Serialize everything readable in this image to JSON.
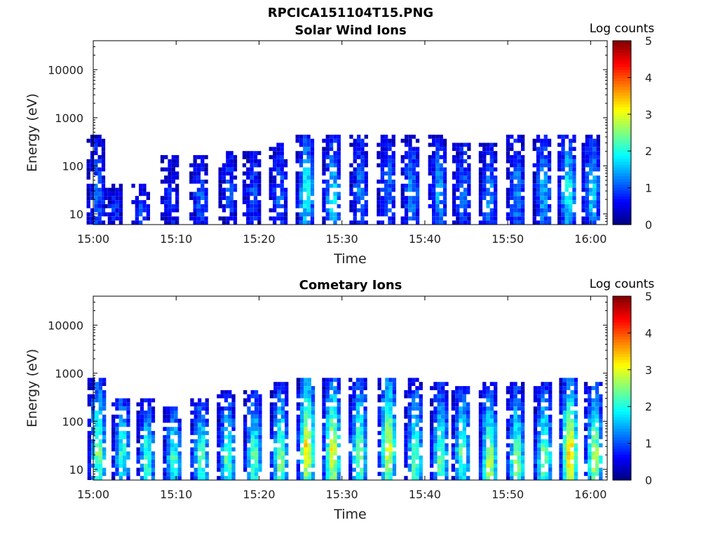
{
  "figure_title": "RPCICA151104T15.PNG",
  "chart_data": [
    {
      "type": "heatmap",
      "title": "Solar Wind Ions",
      "xlabel": "Time",
      "ylabel": "Energy (eV)",
      "y_scale": "log",
      "x_ticks": [
        "15:00",
        "15:10",
        "15:20",
        "15:30",
        "15:40",
        "15:50",
        "16:00"
      ],
      "x_range_minutes": [
        0,
        62
      ],
      "y_ticks": [
        10,
        100,
        1000,
        10000
      ],
      "y_tick_labels": [
        "10",
        "100",
        "1000",
        "10000"
      ],
      "y_range": [
        6,
        40000
      ],
      "colorbar": {
        "label": "Log counts",
        "min": 0,
        "max": 5,
        "ticks": [
          "0",
          "1",
          "2",
          "3",
          "4",
          "5"
        ],
        "colormap": "jet"
      },
      "bursts": [
        {
          "t": 0.3,
          "lo": 6,
          "hi": 400,
          "peak": 1.3,
          "peak_e": 25
        },
        {
          "t": 2.4,
          "lo": 6,
          "hi": 35,
          "peak": 1.0,
          "peak_e": 12
        },
        {
          "t": 5.7,
          "lo": 6,
          "hi": 40,
          "peak": 1.2,
          "peak_e": 12
        },
        {
          "t": 9.2,
          "lo": 6,
          "hi": 150,
          "peak": 1.0,
          "peak_e": 15
        },
        {
          "t": 12.7,
          "lo": 6,
          "hi": 150,
          "peak": 1.2,
          "peak_e": 20
        },
        {
          "t": 16.2,
          "lo": 6,
          "hi": 200,
          "peak": 1.2,
          "peak_e": 25
        },
        {
          "t": 19.1,
          "lo": 6,
          "hi": 200,
          "peak": 1.2,
          "peak_e": 25
        },
        {
          "t": 22.3,
          "lo": 6,
          "hi": 300,
          "peak": 1.3,
          "peak_e": 25
        },
        {
          "t": 25.5,
          "lo": 6,
          "hi": 400,
          "peak": 2.3,
          "peak_e": 25
        },
        {
          "t": 28.7,
          "lo": 6,
          "hi": 400,
          "peak": 2.1,
          "peak_e": 20
        },
        {
          "t": 32.0,
          "lo": 6,
          "hi": 400,
          "peak": 1.4,
          "peak_e": 30
        },
        {
          "t": 35.3,
          "lo": 6,
          "hi": 400,
          "peak": 1.4,
          "peak_e": 30
        },
        {
          "t": 38.2,
          "lo": 6,
          "hi": 400,
          "peak": 1.6,
          "peak_e": 25
        },
        {
          "t": 41.5,
          "lo": 6,
          "hi": 400,
          "peak": 1.6,
          "peak_e": 25
        },
        {
          "t": 44.4,
          "lo": 6,
          "hi": 300,
          "peak": 1.4,
          "peak_e": 25
        },
        {
          "t": 47.6,
          "lo": 6,
          "hi": 300,
          "peak": 1.6,
          "peak_e": 20
        },
        {
          "t": 50.9,
          "lo": 6,
          "hi": 400,
          "peak": 1.6,
          "peak_e": 25
        },
        {
          "t": 54.1,
          "lo": 6,
          "hi": 400,
          "peak": 1.8,
          "peak_e": 30
        },
        {
          "t": 57.1,
          "lo": 6,
          "hi": 400,
          "peak": 2.3,
          "peak_e": 25
        },
        {
          "t": 60.0,
          "lo": 6,
          "hi": 400,
          "peak": 2.0,
          "peak_e": 25
        }
      ]
    },
    {
      "type": "heatmap",
      "title": "Cometary Ions",
      "xlabel": "Time",
      "ylabel": "Energy (eV)",
      "y_scale": "log",
      "x_ticks": [
        "15:00",
        "15:10",
        "15:20",
        "15:30",
        "15:40",
        "15:50",
        "16:00"
      ],
      "x_range_minutes": [
        0,
        62
      ],
      "y_ticks": [
        10,
        100,
        1000,
        10000
      ],
      "y_tick_labels": [
        "10",
        "100",
        "1000",
        "10000"
      ],
      "y_range": [
        6,
        40000
      ],
      "colorbar": {
        "label": "Log counts",
        "min": 0,
        "max": 5,
        "ticks": [
          "0",
          "1",
          "2",
          "3",
          "4",
          "5"
        ],
        "colormap": "jet"
      },
      "bursts": [
        {
          "t": 0.4,
          "lo": 6,
          "hi": 700,
          "peak": 2.9,
          "peak_e": 20
        },
        {
          "t": 3.3,
          "lo": 6,
          "hi": 300,
          "peak": 2.4,
          "peak_e": 20
        },
        {
          "t": 6.3,
          "lo": 6,
          "hi": 250,
          "peak": 2.6,
          "peak_e": 15
        },
        {
          "t": 9.5,
          "lo": 6,
          "hi": 200,
          "peak": 2.5,
          "peak_e": 15
        },
        {
          "t": 12.8,
          "lo": 6,
          "hi": 300,
          "peak": 2.7,
          "peak_e": 15
        },
        {
          "t": 16.0,
          "lo": 6,
          "hi": 400,
          "peak": 2.6,
          "peak_e": 15
        },
        {
          "t": 19.2,
          "lo": 6,
          "hi": 400,
          "peak": 2.7,
          "peak_e": 15
        },
        {
          "t": 22.4,
          "lo": 6,
          "hi": 600,
          "peak": 2.9,
          "peak_e": 15
        },
        {
          "t": 25.6,
          "lo": 6,
          "hi": 700,
          "peak": 3.8,
          "peak_e": 25
        },
        {
          "t": 28.7,
          "lo": 6,
          "hi": 700,
          "peak": 3.6,
          "peak_e": 20
        },
        {
          "t": 31.9,
          "lo": 6,
          "hi": 800,
          "peak": 2.9,
          "peak_e": 20
        },
        {
          "t": 35.4,
          "lo": 6,
          "hi": 700,
          "peak": 3.5,
          "peak_e": 25
        },
        {
          "t": 38.6,
          "lo": 6,
          "hi": 700,
          "peak": 2.8,
          "peak_e": 15
        },
        {
          "t": 41.7,
          "lo": 6,
          "hi": 600,
          "peak": 2.8,
          "peak_e": 15
        },
        {
          "t": 44.3,
          "lo": 6,
          "hi": 500,
          "peak": 2.7,
          "peak_e": 20
        },
        {
          "t": 47.6,
          "lo": 6,
          "hi": 600,
          "peak": 3.3,
          "peak_e": 12
        },
        {
          "t": 50.9,
          "lo": 6,
          "hi": 600,
          "peak": 3.0,
          "peak_e": 12
        },
        {
          "t": 54.2,
          "lo": 6,
          "hi": 600,
          "peak": 2.9,
          "peak_e": 15
        },
        {
          "t": 57.3,
          "lo": 6,
          "hi": 700,
          "peak": 4.0,
          "peak_e": 20
        },
        {
          "t": 60.3,
          "lo": 6,
          "hi": 600,
          "peak": 3.3,
          "peak_e": 15
        }
      ]
    }
  ]
}
